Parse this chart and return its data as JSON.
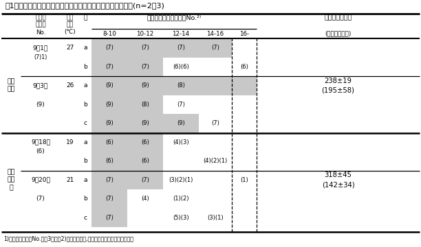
{
  "title": "表1　水槽増設による牛の滞在牧区の変化と推定採食行動時間(n=2、3)",
  "footnote": "1)当日朝入る牧区No.　図3参照　2)網かけ部分が,当日および隣接牧区滞在時間帯",
  "bg_color": "#ffffff",
  "gray_color": "#c8c8c8",
  "rows_info": [
    {
      "ri": 0,
      "cow": "a",
      "date": "9月1日",
      "temp": "27",
      "show_date": true,
      "show_temp": true,
      "t810": "(7)",
      "t1012": "(7)",
      "t1214": "(7)",
      "t1416": "(7)",
      "t16": "",
      "g810": true,
      "g1012": true,
      "g1214": true,
      "g1416": true,
      "g16": false
    },
    {
      "ri": 1,
      "cow": "b",
      "date": "",
      "temp": "",
      "show_date": false,
      "show_temp": false,
      "t810": "(7)",
      "t1012": "(7)",
      "t1214": "(6)(6)",
      "t1416": "",
      "t16": "(6)",
      "g810": true,
      "g1012": true,
      "g1214": false,
      "g1416": false,
      "g16": false
    },
    {
      "ri": 2,
      "cow": "a",
      "date": "9月3日",
      "temp": "26",
      "show_date": true,
      "show_temp": true,
      "t810": "(9)",
      "t1012": "(9)",
      "t1214": "(8)",
      "t1416": "",
      "t16": "",
      "g810": true,
      "g1012": true,
      "g1214": true,
      "g1416": true,
      "g16": true
    },
    {
      "ri": 3,
      "cow": "b",
      "date": "",
      "temp": "",
      "show_date": false,
      "show_temp": false,
      "t810": "(9)",
      "t1012": "(8)",
      "t1214": "(7)",
      "t1416": "",
      "t16": "",
      "g810": true,
      "g1012": true,
      "g1214": false,
      "g1416": false,
      "g16": false
    },
    {
      "ri": 4,
      "cow": "c",
      "date": "",
      "temp": "",
      "show_date": false,
      "show_temp": false,
      "t810": "(9)",
      "t1012": "(9)",
      "t1214": "(9)",
      "t1416": "(7)",
      "t16": "",
      "g810": true,
      "g1012": true,
      "g1214": true,
      "g1416": false,
      "g16": false
    },
    {
      "ri": 5,
      "cow": "a",
      "date": "9月18日",
      "temp": "19",
      "show_date": true,
      "show_temp": true,
      "t810": "(6)",
      "t1012": "(6)",
      "t1214": "(4)(3)",
      "t1416": "",
      "t16": "",
      "g810": true,
      "g1012": true,
      "g1214": false,
      "g1416": false,
      "g16": false
    },
    {
      "ri": 6,
      "cow": "b",
      "date": "",
      "temp": "",
      "show_date": false,
      "show_temp": false,
      "t810": "(6)",
      "t1012": "(6)",
      "t1214": "",
      "t1416": "(4)(2)(1)",
      "t16": "",
      "g810": true,
      "g1012": true,
      "g1214": false,
      "g1416": false,
      "g16": false
    },
    {
      "ri": 7,
      "cow": "a",
      "date": "9月20日",
      "temp": "21",
      "show_date": true,
      "show_temp": true,
      "t810": "(7)",
      "t1012": "(7)",
      "t1214": "(3)(2)(1)",
      "t1416": "",
      "t16": "(1)",
      "g810": true,
      "g1012": true,
      "g1214": false,
      "g1416": false,
      "g16": false
    },
    {
      "ri": 8,
      "cow": "b",
      "date": "",
      "temp": "",
      "show_date": false,
      "show_temp": false,
      "t810": "(7)",
      "t1012": "(4)",
      "t1214": "(1)(2)",
      "t1416": "",
      "t16": "",
      "g810": true,
      "g1012": false,
      "g1214": false,
      "g1416": false,
      "g16": false
    },
    {
      "ri": 9,
      "cow": "c",
      "date": "",
      "temp": "",
      "show_date": false,
      "show_temp": false,
      "t810": "(7)",
      "t1012": "",
      "t1214": "(5)(3)",
      "t1416": "(3)(1)",
      "t16": "",
      "g810": true,
      "g1012": false,
      "g1214": false,
      "g1416": false,
      "g16": false
    }
  ],
  "pad_labels": [
    {
      "r_start": 0,
      "r_end": 1,
      "pad": "(7)",
      "fn": "1)"
    },
    {
      "r_start": 2,
      "r_end": 4,
      "pad": "(9)",
      "fn": ""
    },
    {
      "r_start": 5,
      "r_end": 6,
      "pad": "(6)",
      "fn": ""
    },
    {
      "r_start": 7,
      "r_end": 9,
      "pad": "(7)",
      "fn": ""
    }
  ],
  "section_labels": [
    {
      "r_start": 0,
      "r_end": 4,
      "label": "水槽\n増設"
    },
    {
      "r_start": 5,
      "r_end": 9,
      "label": "水槽\n未増\n設"
    }
  ],
  "eating_labels": [
    {
      "r_start": 0,
      "r_end": 4,
      "text": "238±19\n(195±58)"
    },
    {
      "r_start": 5,
      "r_end": 9,
      "text": "318±45\n(142±34)"
    }
  ]
}
